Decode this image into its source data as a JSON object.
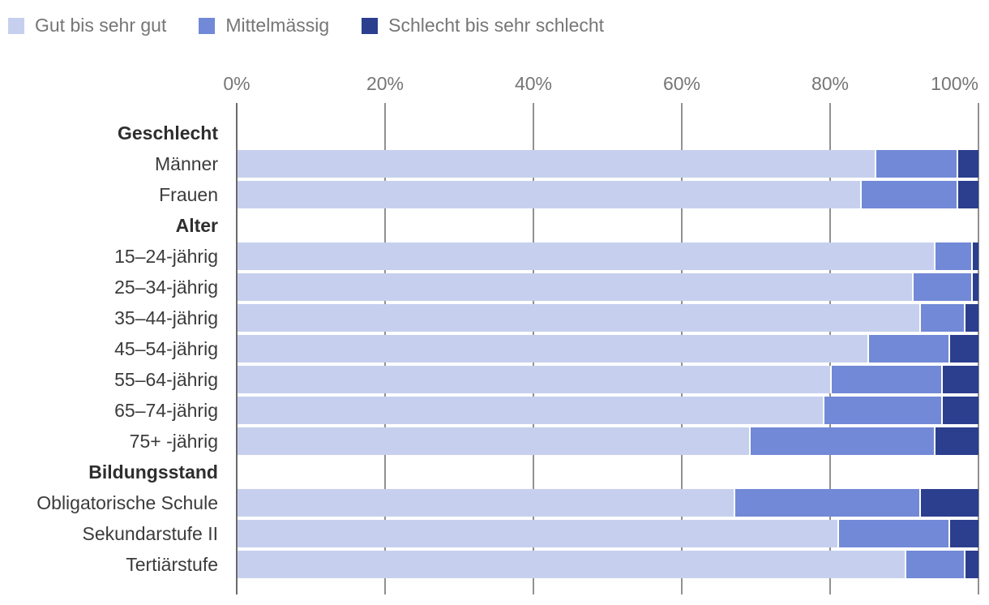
{
  "legend": {
    "items": [
      {
        "label": "Gut bis sehr gut",
        "color": "#c6d0ee"
      },
      {
        "label": "Mittelmässig",
        "color": "#7289d7"
      },
      {
        "label": "Schlecht bis sehr schlecht",
        "color": "#2b3f8e"
      }
    ]
  },
  "axis": {
    "tick_labels": [
      "0%",
      "20%",
      "40%",
      "60%",
      "80%",
      "100%"
    ]
  },
  "colors": {
    "segment_light": "#c6d0ee",
    "segment_medium": "#7289d7",
    "segment_dark": "#2b3f8e",
    "gridline": "#919191",
    "axis_line": "#6a6a6a",
    "legend_text": "#767676",
    "axis_text": "#767676",
    "row_label_text": "#3b3b3b"
  },
  "chart_data": {
    "type": "bar",
    "stacked": true,
    "orientation": "horizontal",
    "unit": "%",
    "xlim": [
      0,
      100
    ],
    "x_ticks": [
      0,
      20,
      40,
      60,
      80,
      100
    ],
    "grid": true,
    "legend_position": "top",
    "series_names": [
      "Gut bis sehr gut",
      "Mittelmässig",
      "Schlecht bis sehr schlecht"
    ],
    "series_colors": [
      "#c6d0ee",
      "#7289d7",
      "#2b3f8e"
    ],
    "rows": [
      {
        "kind": "group",
        "label": "Geschlecht"
      },
      {
        "kind": "bar",
        "label": "Männer",
        "values": [
          86,
          11,
          3
        ]
      },
      {
        "kind": "bar",
        "label": "Frauen",
        "values": [
          84,
          13,
          3
        ]
      },
      {
        "kind": "group",
        "label": "Alter"
      },
      {
        "kind": "bar",
        "label": "15–24-jährig",
        "values": [
          94,
          5,
          1
        ]
      },
      {
        "kind": "bar",
        "label": "25–34-jährig",
        "values": [
          91,
          8,
          1
        ]
      },
      {
        "kind": "bar",
        "label": "35–44-jährig",
        "values": [
          92,
          6,
          2
        ]
      },
      {
        "kind": "bar",
        "label": "45–54-jährig",
        "values": [
          85,
          11,
          4
        ]
      },
      {
        "kind": "bar",
        "label": "55–64-jährig",
        "values": [
          80,
          15,
          5
        ]
      },
      {
        "kind": "bar",
        "label": "65–74-jährig",
        "values": [
          79,
          16,
          5
        ]
      },
      {
        "kind": "bar",
        "label": "75+ -jährig",
        "values": [
          69,
          25,
          6
        ]
      },
      {
        "kind": "group",
        "label": "Bildungsstand"
      },
      {
        "kind": "bar",
        "label": "Obligatorische Schule",
        "values": [
          67,
          25,
          8
        ]
      },
      {
        "kind": "bar",
        "label": "Sekundarstufe II",
        "values": [
          81,
          15,
          4
        ]
      },
      {
        "kind": "bar",
        "label": "Tertiärstufe",
        "values": [
          90,
          8,
          2
        ]
      }
    ]
  }
}
